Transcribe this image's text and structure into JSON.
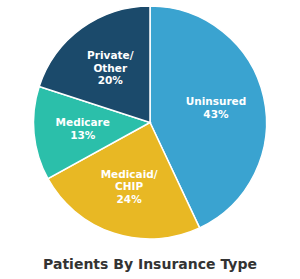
{
  "chart_data": {
    "type": "pie",
    "title": "Patients By Insurance Type",
    "categories": [
      "Uninsured",
      "Medicaid/\nCHIP",
      "Medicare",
      "Private/\nOther"
    ],
    "values": [
      43,
      24,
      13,
      20
    ],
    "value_labels": [
      "43%",
      "24%",
      "13%",
      "20%"
    ],
    "colors": [
      "#3aa3d0",
      "#e8b824",
      "#2bbfaa",
      "#1b4a6b"
    ],
    "data_labels": true
  }
}
